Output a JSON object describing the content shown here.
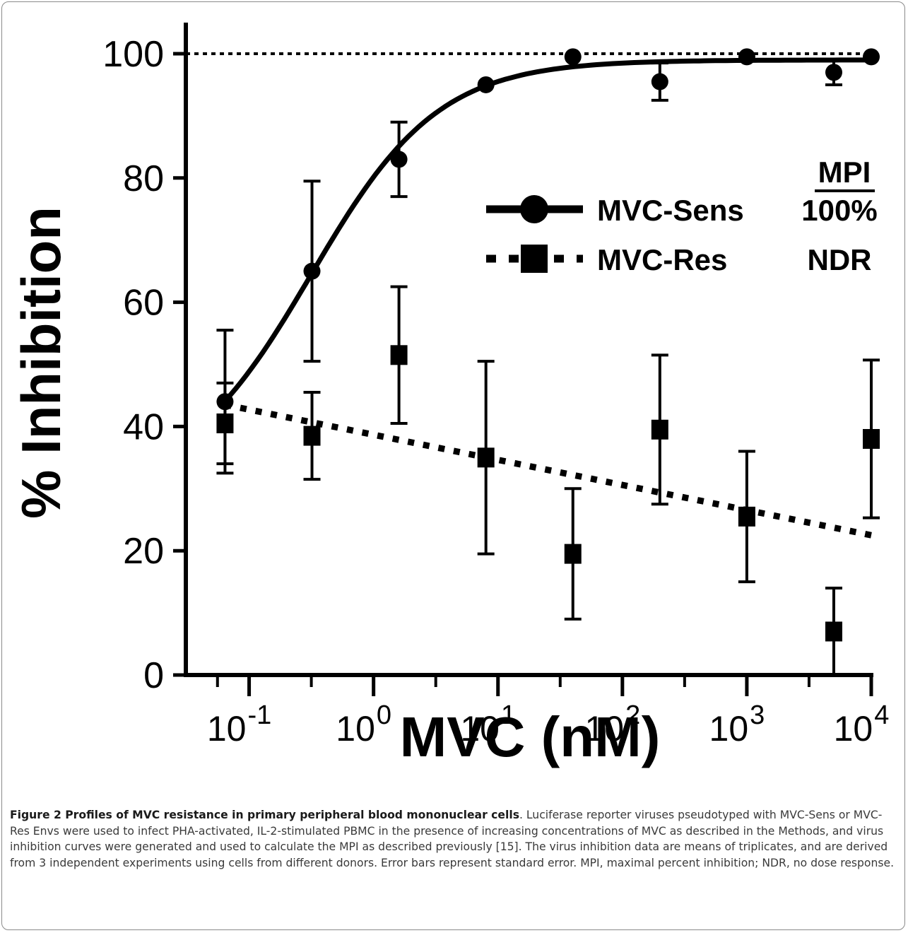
{
  "chart_data": {
    "type": "scatter",
    "xscale": "log",
    "xlabel": "MVC (nM)",
    "ylabel": "% Inhibition",
    "xlim": [
      0.031,
      10000
    ],
    "ylim": [
      0,
      100
    ],
    "xticks": [
      {
        "value": 0.1,
        "base": "10",
        "exp": "-1"
      },
      {
        "value": 1,
        "base": "10",
        "exp": "0"
      },
      {
        "value": 10,
        "base": "10",
        "exp": "1"
      },
      {
        "value": 100,
        "base": "10",
        "exp": "2"
      },
      {
        "value": 1000,
        "base": "10",
        "exp": "3"
      },
      {
        "value": 10000,
        "base": "10",
        "exp": "4"
      }
    ],
    "yticks": [
      0,
      20,
      40,
      60,
      80,
      100
    ],
    "reference_line": {
      "y": 100,
      "style": "dotted"
    },
    "legend": {
      "placement": "right",
      "header": "MPI",
      "entries": [
        {
          "name": "MVC-Sens",
          "mpi": "100%",
          "marker": "circle",
          "line": "solid"
        },
        {
          "name": "MVC-Res",
          "mpi": "NDR",
          "marker": "square",
          "line": "dotted"
        }
      ]
    },
    "series": [
      {
        "name": "MVC-Sens",
        "marker": "circle",
        "x": [
          0.064,
          0.32,
          1.6,
          8,
          40,
          200,
          1000,
          5000,
          10000
        ],
        "y": [
          44,
          65,
          83,
          95,
          99.5,
          95.5,
          99.5,
          97,
          99.5
        ],
        "err": [
          11.5,
          14.5,
          6,
          0,
          0,
          3,
          0,
          2,
          0
        ],
        "fit": "sigmoid",
        "fit_line": "solid"
      },
      {
        "name": "MVC-Res",
        "marker": "square",
        "x": [
          0.064,
          0.32,
          1.6,
          8,
          40,
          200,
          1000,
          5000,
          10000
        ],
        "y": [
          40.5,
          38.5,
          51.5,
          35,
          19.5,
          39.5,
          25.5,
          7,
          38
        ],
        "err": [
          6.5,
          7,
          11,
          15.5,
          10.5,
          12,
          10.5,
          7,
          12.7
        ],
        "fit": "linear",
        "fit_line": "dotted"
      }
    ]
  },
  "caption": {
    "bold": "Figure 2 Profiles of MVC resistance in primary peripheral blood mononuclear cells",
    "text": ". Luciferase reporter viruses pseudotyped with MVC-Sens or MVC-Res Envs were used to infect PHA-activated, IL-2-stimulated PBMC in the presence of increasing concentrations of MVC as described in the Methods, and virus inhibition curves were generated and used to calculate the MPI as described previously [15]. The virus inhibition data are means of triplicates, and are derived from 3 independent experiments using cells from different donors. Error bars represent standard error. MPI, maximal percent inhibition; NDR, no dose response."
  }
}
